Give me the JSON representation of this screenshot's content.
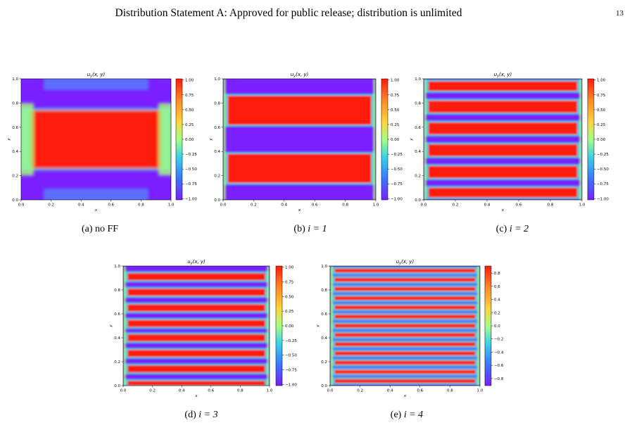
{
  "header": {
    "title": "Distribution Statement A: Approved for public release; distribution is unlimited",
    "page_number": "13"
  },
  "figure": {
    "panels": [
      {
        "title": "u_y(x, y)",
        "caption_label": "(a)",
        "caption_text": "no FF",
        "xlabel": "x",
        "ylabel": "y",
        "xticks": [
          "0.0",
          "0.2",
          "0.4",
          "0.6",
          "0.8",
          "1.0"
        ],
        "yticks": [
          "0.0",
          "0.2",
          "0.4",
          "0.6",
          "0.8",
          "1.0"
        ],
        "colorbar_ticks": [
          "1.00",
          "0.75",
          "0.50",
          "0.25",
          "0.00",
          "−0.25",
          "−0.50",
          "−0.75",
          "−1.00"
        ]
      },
      {
        "title": "u_y(x, y)",
        "caption_label": "(b)",
        "caption_text": "i = 1",
        "xlabel": "x",
        "ylabel": "y",
        "xticks": [
          "0.0",
          "0.2",
          "0.4",
          "0.6",
          "0.8",
          "1.0"
        ],
        "yticks": [
          "0.0",
          "0.2",
          "0.4",
          "0.6",
          "0.8",
          "1.0"
        ],
        "colorbar_ticks": [
          "1.00",
          "0.75",
          "0.50",
          "0.25",
          "0.00",
          "−0.25",
          "−0.50",
          "−0.75",
          "−1.00"
        ]
      },
      {
        "title": "u_y(x, y)",
        "caption_label": "(c)",
        "caption_text": "i = 2",
        "xlabel": "x",
        "ylabel": "y",
        "xticks": [
          "0.0",
          "0.2",
          "0.4",
          "0.6",
          "0.8",
          "1.0"
        ],
        "yticks": [
          "0.0",
          "0.2",
          "0.4",
          "0.6",
          "0.8",
          "1.0"
        ],
        "colorbar_ticks": [
          "1.00",
          "0.75",
          "0.50",
          "0.25",
          "0.00",
          "−0.25",
          "−0.50",
          "−0.75",
          "−1.00"
        ]
      },
      {
        "title": "u_y(x, y)",
        "caption_label": "(d)",
        "caption_text": "i = 3",
        "xlabel": "x",
        "ylabel": "y",
        "xticks": [
          "0.0",
          "0.2",
          "0.4",
          "0.6",
          "0.8",
          "1.0"
        ],
        "yticks": [
          "0.0",
          "0.2",
          "0.4",
          "0.6",
          "0.8",
          "1.0"
        ],
        "colorbar_ticks": [
          "1.00",
          "0.75",
          "0.50",
          "0.25",
          "0.00",
          "−0.25",
          "−0.50",
          "−0.75",
          "−1.00"
        ]
      },
      {
        "title": "u_y(x, y)",
        "caption_label": "(e)",
        "caption_text": "i = 4",
        "xlabel": "x",
        "ylabel": "y",
        "xticks": [
          "0.0",
          "0.2",
          "0.4",
          "0.6",
          "0.8",
          "1.0"
        ],
        "yticks": [
          "0.0",
          "0.2",
          "0.4",
          "0.6",
          "0.8",
          "1.0"
        ],
        "colorbar_ticks": [
          "0.8",
          "0.6",
          "0.4",
          "0.2",
          "0.0",
          "−0.2",
          "−0.4",
          "−0.6",
          "−0.8"
        ]
      }
    ]
  },
  "chart_data": [
    {
      "type": "heatmap",
      "title": "u_y(x, y)",
      "xlabel": "x",
      "ylabel": "y",
      "xlim": [
        0,
        1
      ],
      "ylim": [
        0,
        1
      ],
      "clim": [
        -1,
        1
      ],
      "colormap": "rainbow",
      "red_bands_y": [
        [
          0.26,
          0.74
        ]
      ]
    },
    {
      "type": "heatmap",
      "title": "u_y(x, y)",
      "xlabel": "x",
      "ylabel": "y",
      "xlim": [
        0,
        1
      ],
      "ylim": [
        0,
        1
      ],
      "clim": [
        -1,
        1
      ],
      "colormap": "rainbow",
      "red_bands_y": [
        [
          0.14,
          0.38
        ],
        [
          0.62,
          0.86
        ]
      ]
    },
    {
      "type": "heatmap",
      "title": "u_y(x, y)",
      "xlabel": "x",
      "ylabel": "y",
      "xlim": [
        0,
        1
      ],
      "ylim": [
        0,
        1
      ],
      "clim": [
        -1,
        1
      ],
      "colormap": "rainbow",
      "red_bands_y": [
        [
          0.02,
          0.1
        ],
        [
          0.18,
          0.28
        ],
        [
          0.36,
          0.46
        ],
        [
          0.54,
          0.64
        ],
        [
          0.72,
          0.82
        ],
        [
          0.9,
          0.98
        ]
      ]
    },
    {
      "type": "heatmap",
      "title": "u_y(x, y)",
      "xlabel": "x",
      "ylabel": "y",
      "xlim": [
        0,
        1
      ],
      "ylim": [
        0,
        1
      ],
      "clim": [
        -1,
        1
      ],
      "colormap": "rainbow",
      "red_bands_y": [
        [
          0.0,
          0.04
        ],
        [
          0.11,
          0.17
        ],
        [
          0.24,
          0.3
        ],
        [
          0.37,
          0.43
        ],
        [
          0.49,
          0.55
        ],
        [
          0.62,
          0.68
        ],
        [
          0.75,
          0.81
        ],
        [
          0.88,
          0.94
        ]
      ]
    },
    {
      "type": "heatmap",
      "title": "u_y(x, y)",
      "xlabel": "x",
      "ylabel": "y",
      "xlim": [
        0,
        1
      ],
      "ylim": [
        0,
        1
      ],
      "clim": [
        -0.9,
        0.9
      ],
      "colormap": "rainbow",
      "red_band_count": 13
    }
  ]
}
